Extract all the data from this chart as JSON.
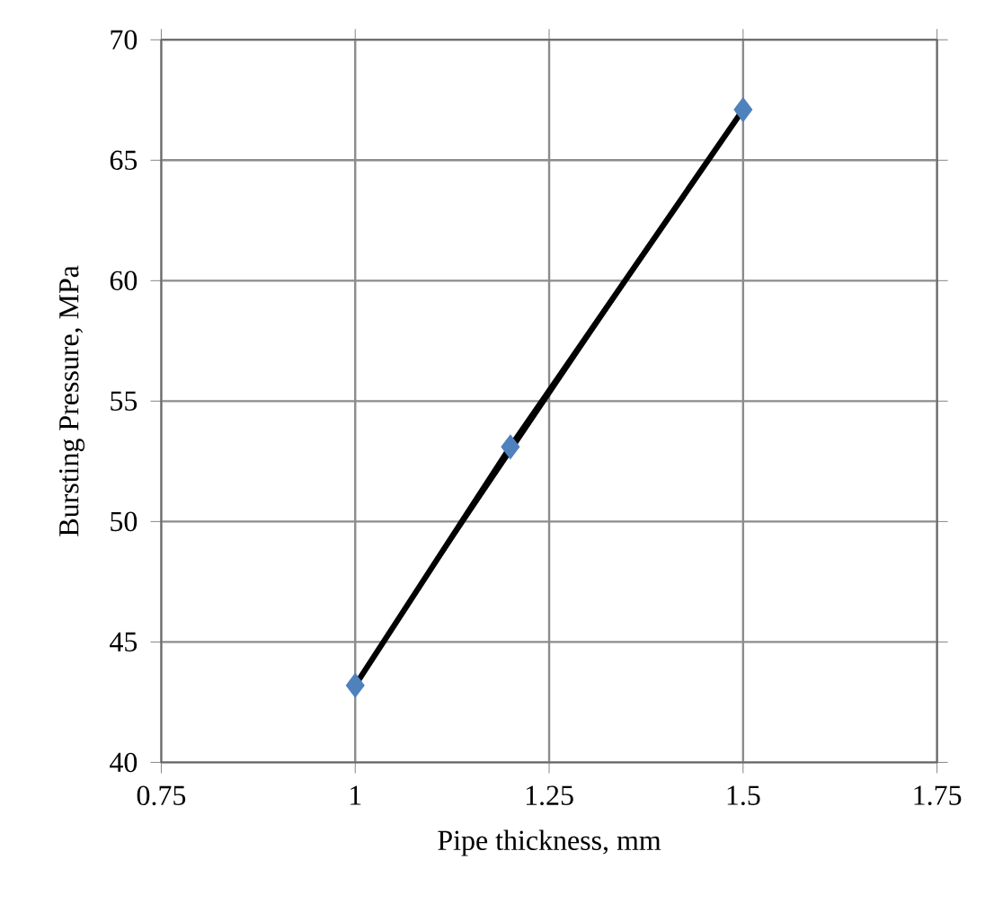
{
  "chart_data": {
    "type": "scatter",
    "xlabel": "Pipe thickness, mm",
    "ylabel": "Bursting Pressure, MPa",
    "series": [
      {
        "type": "line",
        "color": "#000000",
        "x": [
          1,
          1.2,
          1.5
        ],
        "values": [
          43.2,
          53.1,
          67.1
        ],
        "marker": "none"
      },
      {
        "color": "#4f81bd",
        "x": [
          1,
          1.2,
          1.5
        ],
        "values": [
          43.2,
          53.1,
          67.1
        ],
        "marker": "diamond"
      }
    ],
    "xlim": [
      0.75,
      1.75
    ],
    "xticks": [
      0.75,
      1,
      1.25,
      1.5,
      1.75
    ],
    "ylim": [
      40,
      70
    ],
    "yticks": [
      40,
      45,
      50,
      55,
      60,
      65,
      70
    ],
    "grid": true
  }
}
